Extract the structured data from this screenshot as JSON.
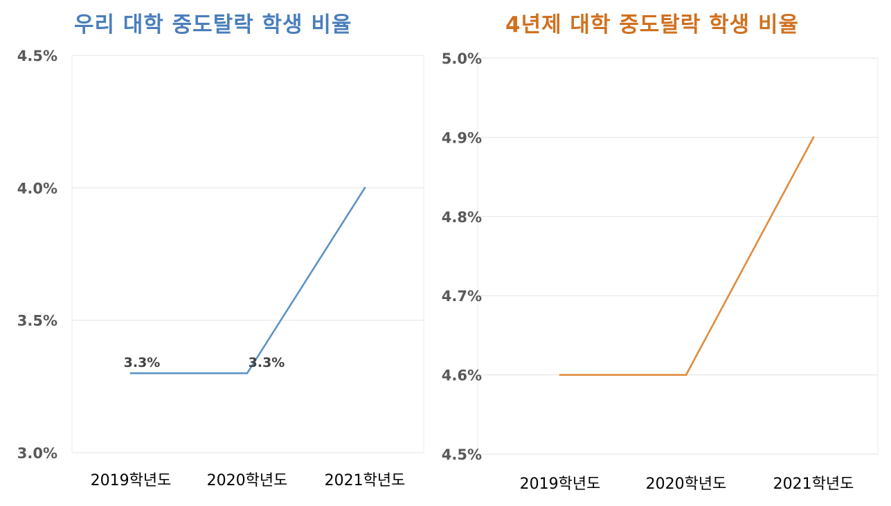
{
  "chart_data": [
    {
      "type": "line",
      "title": "우리 대학 중도탈락 학생 비율",
      "title_color": "#4a7ebb",
      "line_color": "#5b93c5",
      "categories": [
        "2019학년도",
        "2020학년도",
        "2021학년도"
      ],
      "series": [
        {
          "values": [
            3.3,
            3.3,
            4.0
          ]
        }
      ],
      "data_labels": [
        "3.3%",
        "3.3%",
        ""
      ],
      "ylim": [
        3.0,
        4.5
      ],
      "yticks": [
        3.0,
        3.5,
        4.0,
        4.5
      ],
      "ytick_labels": [
        "3.0%",
        "3.5%",
        "4.0%",
        "4.5%"
      ],
      "xlabel": "",
      "ylabel": "",
      "grid": true,
      "legend": "none"
    },
    {
      "type": "line",
      "title": "4년제 대학 중도탈락 학생 비율",
      "title_color": "#d0701f",
      "line_color": "#e08b3c",
      "categories": [
        "2019학년도",
        "2020학년도",
        "2021학년도"
      ],
      "series": [
        {
          "values": [
            4.6,
            4.6,
            4.9
          ]
        }
      ],
      "data_labels": [
        "",
        "",
        ""
      ],
      "ylim": [
        4.5,
        5.0
      ],
      "yticks": [
        4.5,
        4.6,
        4.7,
        4.8,
        4.9,
        5.0
      ],
      "ytick_labels": [
        "4.5%",
        "4.6%",
        "4.7%",
        "4.8%",
        "4.9%",
        "5.0%"
      ],
      "xlabel": "",
      "ylabel": "",
      "grid": true,
      "legend": "none"
    }
  ]
}
